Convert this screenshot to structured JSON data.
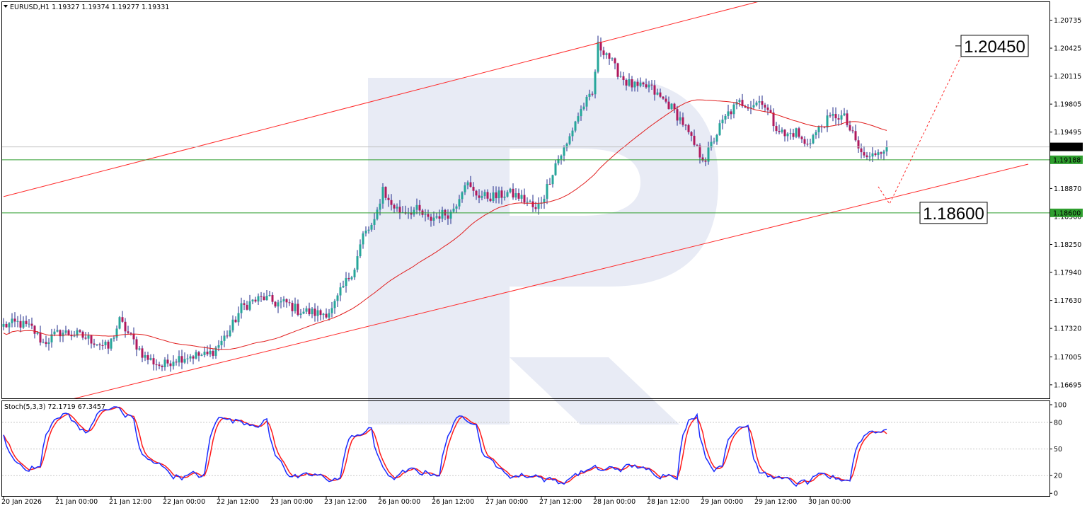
{
  "chart_data": {
    "type": "candlestick",
    "symbol_line": "EURUSD,H1  1.19327 1.19374 1.19277 1.19331",
    "colors": {
      "bull": "#26a69a",
      "bear": "#b0185c",
      "ma": "#e11d1d",
      "level": "#2e9e2e",
      "stoch_main": "#1a2bff",
      "stoch_signal": "#ff1a1a",
      "channel": "#ff2a2a"
    },
    "price_axis": {
      "ylim": [
        1.16545,
        1.20935
      ],
      "ticks": [
        "1.20735",
        "1.20425",
        "1.20115",
        "1.19805",
        "1.19495",
        "1.18870",
        "1.18560",
        "1.18250",
        "1.17940",
        "1.17630",
        "1.17320",
        "1.17005",
        "1.16695"
      ]
    },
    "time_axis": {
      "labels": [
        "20 Jan 2026",
        "21 Jan 00:00",
        "21 Jan 12:00",
        "22 Jan 00:00",
        "22 Jan 12:00",
        "23 Jan 00:00",
        "23 Jan 12:00",
        "26 Jan 00:00",
        "26 Jan 12:00",
        "27 Jan 00:00",
        "27 Jan 12:00",
        "28 Jan 00:00",
        "28 Jan 12:00",
        "29 Jan 00:00",
        "29 Jan 12:00",
        "30 Jan 00:00"
      ],
      "label_bars": [
        0,
        19,
        38,
        57,
        76,
        95,
        114,
        133,
        152,
        171,
        190,
        209,
        228,
        247,
        266,
        285
      ]
    },
    "current_price": "1.19331",
    "levels": [
      {
        "price": 1.19188,
        "tag": "1.19188"
      },
      {
        "price": 1.186,
        "tag": "1.18600"
      }
    ],
    "annotations": [
      {
        "text": "1.20450",
        "price": 1.2045
      },
      {
        "text": "1.18600",
        "price": 1.186
      }
    ],
    "forecast_path": [
      {
        "bar": 309,
        "price": 1.1889
      },
      {
        "bar": 313,
        "price": 1.187
      },
      {
        "bar": 338,
        "price": 1.2032
      }
    ],
    "channel": {
      "upper": [
        {
          "bar": 0,
          "price": 1.1878
        },
        {
          "bar": 274,
          "price": 1.21
        }
      ],
      "lower": [
        {
          "bar": 0,
          "price": 1.1635
        },
        {
          "bar": 362,
          "price": 1.1914
        }
      ]
    },
    "ma_period": 50,
    "stochastic": {
      "label": "Stoch(5,3,3) 72.1719 67.3457",
      "ylim": [
        -3,
        104
      ],
      "ticks": [
        "100",
        "80",
        "50",
        "20",
        "0"
      ],
      "levels": [
        20,
        50,
        80
      ]
    },
    "anchors": [
      [
        0,
        1.1735
      ],
      [
        5,
        1.1738
      ],
      [
        10,
        1.1732
      ],
      [
        14,
        1.1716
      ],
      [
        20,
        1.1728
      ],
      [
        26,
        1.1725
      ],
      [
        32,
        1.1718
      ],
      [
        37,
        1.171
      ],
      [
        41,
        1.174
      ],
      [
        45,
        1.1722
      ],
      [
        50,
        1.17
      ],
      [
        56,
        1.169
      ],
      [
        60,
        1.1698
      ],
      [
        66,
        1.1702
      ],
      [
        72,
        1.1702
      ],
      [
        75,
        1.171
      ],
      [
        80,
        1.173
      ],
      [
        84,
        1.1755
      ],
      [
        88,
        1.1762
      ],
      [
        92,
        1.1766
      ],
      [
        96,
        1.176
      ],
      [
        100,
        1.176
      ],
      [
        104,
        1.1752
      ],
      [
        108,
        1.175
      ],
      [
        112,
        1.1748
      ],
      [
        116,
        1.1752
      ],
      [
        120,
        1.1778
      ],
      [
        124,
        1.18
      ],
      [
        127,
        1.1835
      ],
      [
        131,
        1.1848
      ],
      [
        134,
        1.1888
      ],
      [
        136,
        1.1872
      ],
      [
        140,
        1.1862
      ],
      [
        146,
        1.1863
      ],
      [
        150,
        1.1852
      ],
      [
        154,
        1.1858
      ],
      [
        158,
        1.186
      ],
      [
        160,
        1.1872
      ],
      [
        163,
        1.1895
      ],
      [
        166,
        1.1882
      ],
      [
        170,
        1.1878
      ],
      [
        174,
        1.1878
      ],
      [
        178,
        1.1882
      ],
      [
        182,
        1.1878
      ],
      [
        186,
        1.187
      ],
      [
        188,
        1.1862
      ],
      [
        191,
        1.188
      ],
      [
        195,
        1.1915
      ],
      [
        199,
        1.1935
      ],
      [
        202,
        1.1962
      ],
      [
        205,
        1.198
      ],
      [
        208,
        1.199
      ],
      [
        210,
        1.2045
      ],
      [
        213,
        1.2038
      ],
      [
        216,
        1.202
      ],
      [
        220,
        1.2005
      ],
      [
        224,
        1.1998
      ],
      [
        228,
        1.2
      ],
      [
        231,
        1.199
      ],
      [
        235,
        1.198
      ],
      [
        240,
        1.196
      ],
      [
        243,
        1.194
      ],
      [
        246,
        1.1925
      ],
      [
        248,
        1.192
      ],
      [
        250,
        1.1935
      ],
      [
        253,
        1.1955
      ],
      [
        256,
        1.197
      ],
      [
        260,
        1.1982
      ],
      [
        264,
        1.198
      ],
      [
        268,
        1.1985
      ],
      [
        272,
        1.196
      ],
      [
        276,
        1.1945
      ],
      [
        280,
        1.195
      ],
      [
        283,
        1.1935
      ],
      [
        286,
        1.1945
      ],
      [
        290,
        1.196
      ],
      [
        294,
        1.1968
      ],
      [
        297,
        1.1965
      ],
      [
        300,
        1.1945
      ],
      [
        303,
        1.1925
      ],
      [
        306,
        1.192
      ],
      [
        309,
        1.193
      ],
      [
        312,
        1.1933
      ]
    ]
  }
}
